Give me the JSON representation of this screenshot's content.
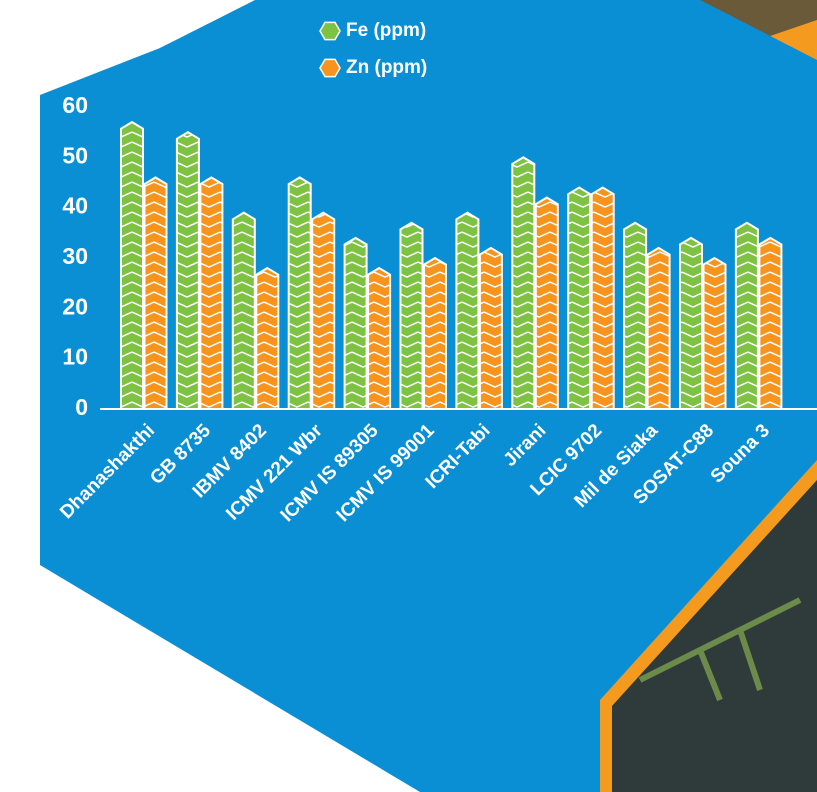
{
  "chart_data": {
    "type": "bar",
    "categories": [
      "Dhanashakthi",
      "GB 8735",
      "IBMV 8402",
      "ICMV 221 Wbr",
      "ICMV IS 89305",
      "ICMV IS 99001",
      "ICRI-Tabi",
      "Jirani",
      "LCIC 9702",
      "Mil de Siaka",
      "SOSAT-C88",
      "Souna 3"
    ],
    "series": [
      {
        "name": "Fe (ppm)",
        "color": "#7dc242",
        "values": [
          57,
          55,
          39,
          46,
          34,
          37,
          39,
          50,
          44,
          37,
          34,
          37
        ]
      },
      {
        "name": "Zn (ppm)",
        "color": "#f7941d",
        "values": [
          46,
          46,
          28,
          39,
          28,
          30,
          32,
          42,
          44,
          32,
          30,
          34
        ]
      }
    ],
    "ylim": [
      0,
      60
    ],
    "yticks": [
      0,
      10,
      20,
      30,
      40,
      50,
      60
    ]
  }
}
